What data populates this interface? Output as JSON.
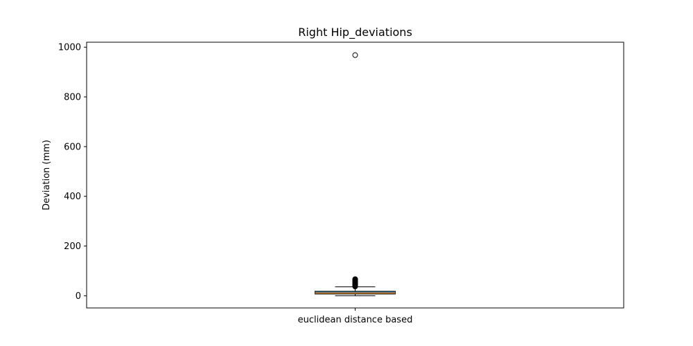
{
  "chart_data": {
    "type": "box",
    "title": "Right Hip_deviations",
    "xlabel": "",
    "ylabel": "Deviation (mm)",
    "ylim": [
      -49,
      1020
    ],
    "yticks": [
      0,
      200,
      400,
      600,
      800,
      1000
    ],
    "ytick_labels": [
      "0",
      "200",
      "400",
      "600",
      "800",
      "1000"
    ],
    "categories": [
      "euclidean distance based"
    ],
    "box_color": "#1f77b4",
    "median_color": "#ff7f0e",
    "boxes": [
      {
        "category": "euclidean distance based",
        "whisker_low": 0,
        "q1": 7,
        "median": 11,
        "q3": 18,
        "whisker_high": 36,
        "outliers": [
          37,
          39,
          41,
          43,
          45,
          47,
          49,
          51,
          53,
          55,
          57,
          59,
          61,
          63,
          65,
          67,
          968
        ]
      }
    ]
  }
}
